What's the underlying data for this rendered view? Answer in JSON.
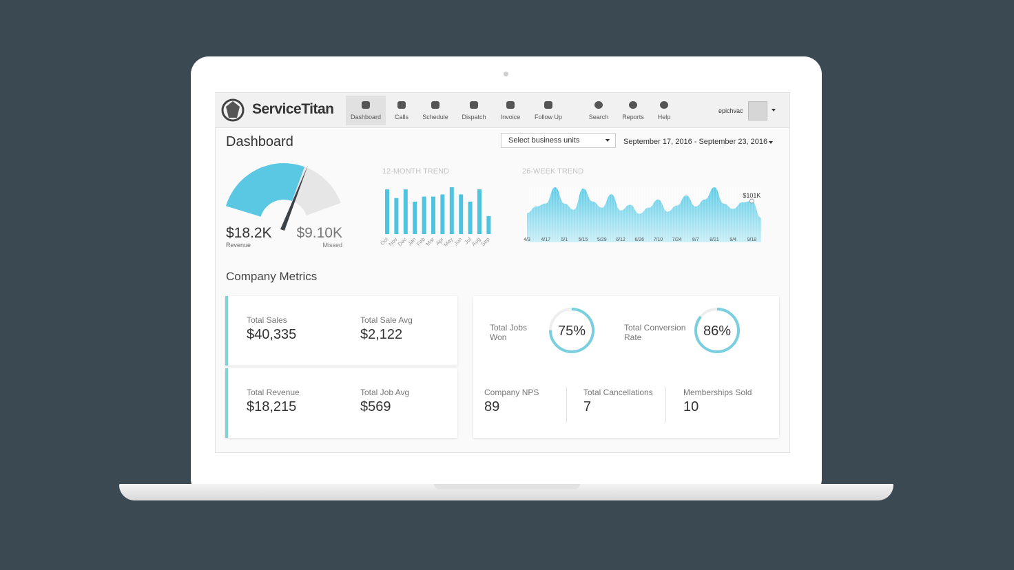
{
  "nav": {
    "brand": "ServiceTitan",
    "items": [
      "Dashboard",
      "Calls",
      "Schedule",
      "Dispatch",
      "Invoice",
      "Follow Up",
      "Search",
      "Reports",
      "Help"
    ],
    "user": "epichvac"
  },
  "header": {
    "title": "Dashboard",
    "business_units": "Select business units",
    "date_range": "September 17, 2016 -  September 23, 2016"
  },
  "gauge": {
    "revenue": "$18.2K",
    "revenue_label": "Revenue",
    "missed": "$9.10K",
    "missed_label": "Missed"
  },
  "trend_12_month": {
    "type": "bar",
    "title": "12-MONTH TREND",
    "categories": [
      "Oct",
      "Nov",
      "Dec",
      "Jan",
      "Feb",
      "Mar",
      "Apr",
      "May",
      "Jun",
      "Jul",
      "Aug",
      "Sep"
    ],
    "values": [
      62,
      50,
      62,
      45,
      52,
      52,
      55,
      65,
      55,
      45,
      62,
      25
    ],
    "color": "#4fc3e0"
  },
  "trend_26_week": {
    "type": "area",
    "title": "26-WEEK TREND",
    "categories": [
      "4/3",
      null,
      "4/17",
      null,
      "5/1",
      null,
      "5/15",
      null,
      "5/29",
      null,
      "6/12",
      null,
      "6/26",
      null,
      "7/10",
      null,
      "7/24",
      null,
      "8/7",
      null,
      "8/21",
      null,
      "9/4",
      null,
      "9/18",
      null
    ],
    "values": [
      72,
      88,
      95,
      135,
      95,
      80,
      132,
      100,
      85,
      118,
      78,
      92,
      70,
      85,
      105,
      75,
      90,
      115,
      88,
      105,
      135,
      95,
      82,
      98,
      101,
      60
    ],
    "annotation": "$101K",
    "color": "#5ccbe6"
  },
  "metrics": {
    "title": "Company Metrics",
    "cards": [
      {
        "label": "Total Sales",
        "value": "$40,335"
      },
      {
        "label": "Total Sale Avg",
        "value": "$2,122"
      },
      {
        "label": "Total Revenue",
        "value": "$18,215"
      },
      {
        "label": "Total Job Avg",
        "value": "$569"
      }
    ],
    "rings": [
      {
        "label": "Total Jobs Won",
        "value": 75,
        "value_label": "75%"
      },
      {
        "label": "Total Conversion Rate",
        "value": 86,
        "value_label": "86%"
      }
    ],
    "stats": [
      {
        "label": "Company NPS",
        "value": 89
      },
      {
        "label": "Total Cancellations",
        "value": 7
      },
      {
        "label": "Memberships Sold",
        "value": 10
      }
    ]
  }
}
